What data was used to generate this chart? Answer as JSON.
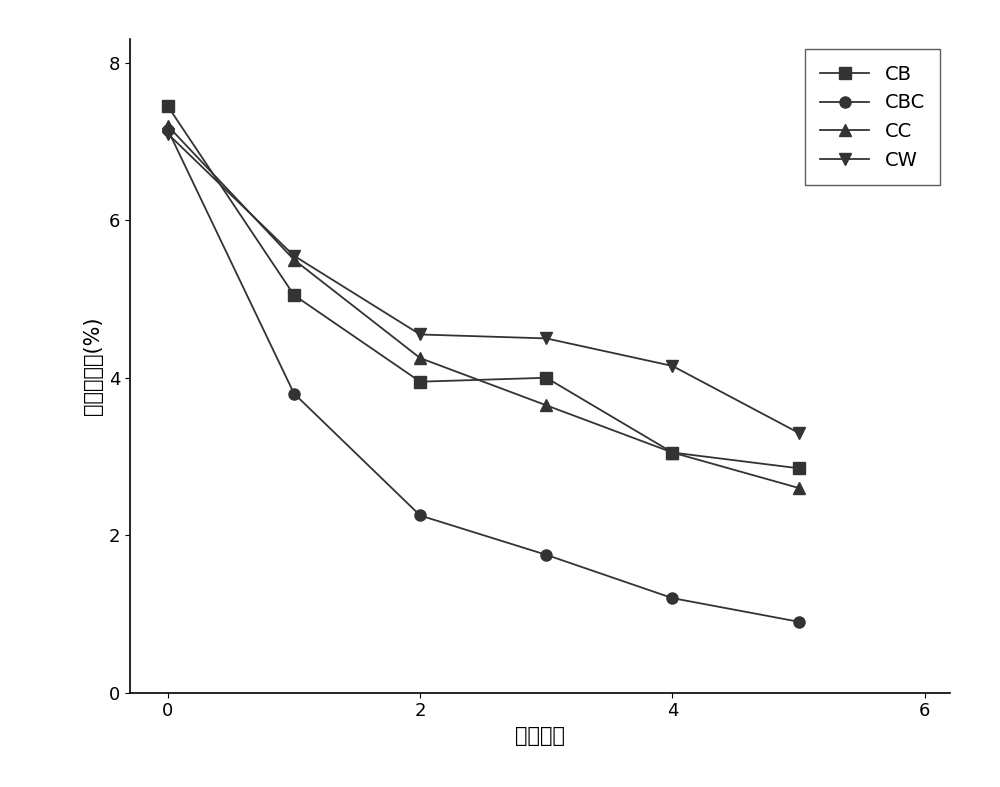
{
  "series": {
    "CB": {
      "x": [
        0,
        1,
        2,
        3,
        4,
        5
      ],
      "y": [
        7.45,
        5.05,
        3.95,
        4.0,
        3.05,
        2.85
      ],
      "marker": "s",
      "color": "#333333",
      "label": "CB"
    },
    "CBC": {
      "x": [
        0,
        1,
        2,
        3,
        4,
        5
      ],
      "y": [
        7.15,
        3.8,
        2.25,
        1.75,
        1.2,
        0.9
      ],
      "marker": "o",
      "color": "#333333",
      "label": "CBC"
    },
    "CC": {
      "x": [
        0,
        1,
        2,
        3,
        4,
        5
      ],
      "y": [
        7.2,
        5.5,
        4.25,
        3.65,
        3.05,
        2.6
      ],
      "marker": "^",
      "color": "#333333",
      "label": "CC"
    },
    "CW": {
      "x": [
        0,
        1,
        2,
        3,
        4,
        5
      ],
      "y": [
        7.1,
        5.55,
        4.55,
        4.5,
        4.15,
        3.3
      ],
      "marker": "v",
      "color": "#333333",
      "label": "CW"
    }
  },
  "xlabel": "处理次数",
  "ylabel": "表面裂隙率(%)",
  "xlim": [
    -0.3,
    6.2
  ],
  "ylim": [
    0,
    8.3
  ],
  "xticks": [
    0,
    2,
    4,
    6
  ],
  "yticks": [
    0,
    2,
    4,
    6,
    8
  ],
  "linewidth": 1.3,
  "markersize": 8,
  "legend_loc": "upper right",
  "fontsize_label": 15,
  "fontsize_tick": 13,
  "fontsize_legend": 14,
  "background_color": "#ffffff"
}
